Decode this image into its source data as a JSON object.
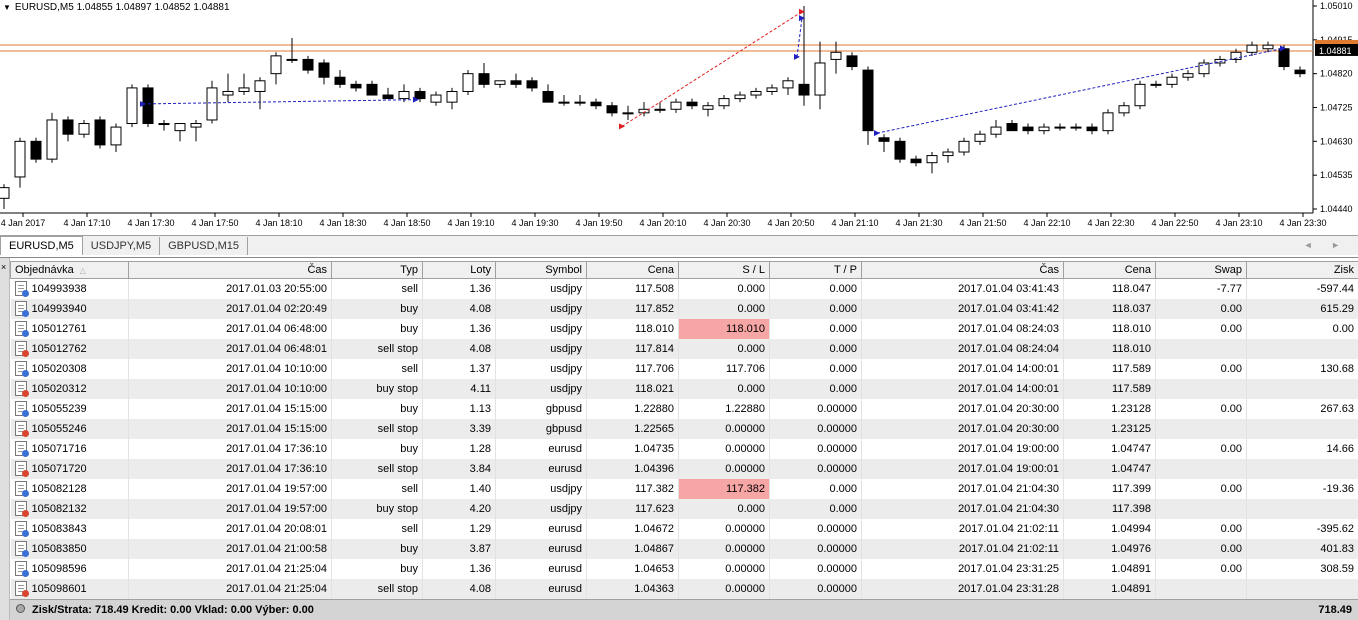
{
  "chart": {
    "symbol_info": "EURUSD,M5  1.04855 1.04897 1.04852 1.04881",
    "current_price_label": "1.04881",
    "price_levels": [
      "1.05010",
      "1.04915",
      "1.04820",
      "1.04725",
      "1.04630",
      "1.04535",
      "1.04440"
    ],
    "time_labels": [
      "4 Jan 2017",
      "4 Jan 17:10",
      "4 Jan 17:30",
      "4 Jan 17:50",
      "4 Jan 18:10",
      "4 Jan 18:30",
      "4 Jan 18:50",
      "4 Jan 19:10",
      "4 Jan 19:30",
      "4 Jan 19:50",
      "4 Jan 20:10",
      "4 Jan 20:30",
      "4 Jan 20:50",
      "4 Jan 21:10",
      "4 Jan 21:30",
      "4 Jan 21:50",
      "4 Jan 22:10",
      "4 Jan 22:30",
      "4 Jan 22:50",
      "4 Jan 23:10",
      "4 Jan 23:30"
    ],
    "colors": {
      "bull_body": "#ffffff",
      "bear_body": "#000000",
      "price_line": "#e07a2e",
      "trade_red": "#e02020",
      "trade_blue": "#2020c0"
    }
  },
  "tabs": [
    {
      "label": "EURUSD,M5",
      "active": true
    },
    {
      "label": "USDJPY,M5",
      "active": false
    },
    {
      "label": "GBPUSD,M15",
      "active": false
    }
  ],
  "tab_arrows": "◄ ►",
  "table": {
    "columns": [
      "Objednávka",
      "Čas",
      "Typ",
      "Loty",
      "Symbol",
      "Cena",
      "S / L",
      "T / P",
      "Čas",
      "Cena",
      "Swap",
      "Zisk"
    ],
    "rows": [
      {
        "ticket": "104993938",
        "open_time": "2017.01.03 20:55:00",
        "type": "sell",
        "lots": "1.36",
        "symbol": "usdjpy",
        "price": "117.508",
        "sl": "0.000",
        "tp": "0.000",
        "close_time": "2017.01.04 03:41:43",
        "close_price": "118.047",
        "swap": "-7.77",
        "profit": "-597.44",
        "icon": "blue",
        "sl_hl": false
      },
      {
        "ticket": "104993940",
        "open_time": "2017.01.04 02:20:49",
        "type": "buy",
        "lots": "4.08",
        "symbol": "usdjpy",
        "price": "117.852",
        "sl": "0.000",
        "tp": "0.000",
        "close_time": "2017.01.04 03:41:42",
        "close_price": "118.037",
        "swap": "0.00",
        "profit": "615.29",
        "icon": "blue",
        "sl_hl": false
      },
      {
        "ticket": "105012761",
        "open_time": "2017.01.04 06:48:00",
        "type": "buy",
        "lots": "1.36",
        "symbol": "usdjpy",
        "price": "118.010",
        "sl": "118.010",
        "tp": "0.000",
        "close_time": "2017.01.04 08:24:03",
        "close_price": "118.010",
        "swap": "0.00",
        "profit": "0.00",
        "icon": "blue",
        "sl_hl": true
      },
      {
        "ticket": "105012762",
        "open_time": "2017.01.04 06:48:01",
        "type": "sell stop",
        "lots": "4.08",
        "symbol": "usdjpy",
        "price": "117.814",
        "sl": "0.000",
        "tp": "0.000",
        "close_time": "2017.01.04 08:24:04",
        "close_price": "118.010",
        "swap": "",
        "profit": "",
        "icon": "red",
        "sl_hl": false
      },
      {
        "ticket": "105020308",
        "open_time": "2017.01.04 10:10:00",
        "type": "sell",
        "lots": "1.37",
        "symbol": "usdjpy",
        "price": "117.706",
        "sl": "117.706",
        "tp": "0.000",
        "close_time": "2017.01.04 14:00:01",
        "close_price": "117.589",
        "swap": "0.00",
        "profit": "130.68",
        "icon": "blue",
        "sl_hl": false
      },
      {
        "ticket": "105020312",
        "open_time": "2017.01.04 10:10:00",
        "type": "buy stop",
        "lots": "4.11",
        "symbol": "usdjpy",
        "price": "118.021",
        "sl": "0.000",
        "tp": "0.000",
        "close_time": "2017.01.04 14:00:01",
        "close_price": "117.589",
        "swap": "",
        "profit": "",
        "icon": "red",
        "sl_hl": false
      },
      {
        "ticket": "105055239",
        "open_time": "2017.01.04 15:15:00",
        "type": "buy",
        "lots": "1.13",
        "symbol": "gbpusd",
        "price": "1.22880",
        "sl": "1.22880",
        "tp": "0.00000",
        "close_time": "2017.01.04 20:30:00",
        "close_price": "1.23128",
        "swap": "0.00",
        "profit": "267.63",
        "icon": "blue",
        "sl_hl": false
      },
      {
        "ticket": "105055246",
        "open_time": "2017.01.04 15:15:00",
        "type": "sell stop",
        "lots": "3.39",
        "symbol": "gbpusd",
        "price": "1.22565",
        "sl": "0.00000",
        "tp": "0.00000",
        "close_time": "2017.01.04 20:30:00",
        "close_price": "1.23125",
        "swap": "",
        "profit": "",
        "icon": "red",
        "sl_hl": false
      },
      {
        "ticket": "105071716",
        "open_time": "2017.01.04 17:36:10",
        "type": "buy",
        "lots": "1.28",
        "symbol": "eurusd",
        "price": "1.04735",
        "sl": "0.00000",
        "tp": "0.00000",
        "close_time": "2017.01.04 19:00:00",
        "close_price": "1.04747",
        "swap": "0.00",
        "profit": "14.66",
        "icon": "blue",
        "sl_hl": false
      },
      {
        "ticket": "105071720",
        "open_time": "2017.01.04 17:36:10",
        "type": "sell stop",
        "lots": "3.84",
        "symbol": "eurusd",
        "price": "1.04396",
        "sl": "0.00000",
        "tp": "0.00000",
        "close_time": "2017.01.04 19:00:01",
        "close_price": "1.04747",
        "swap": "",
        "profit": "",
        "icon": "red",
        "sl_hl": false
      },
      {
        "ticket": "105082128",
        "open_time": "2017.01.04 19:57:00",
        "type": "sell",
        "lots": "1.40",
        "symbol": "usdjpy",
        "price": "117.382",
        "sl": "117.382",
        "tp": "0.000",
        "close_time": "2017.01.04 21:04:30",
        "close_price": "117.399",
        "swap": "0.00",
        "profit": "-19.36",
        "icon": "blue",
        "sl_hl": true
      },
      {
        "ticket": "105082132",
        "open_time": "2017.01.04 19:57:00",
        "type": "buy stop",
        "lots": "4.20",
        "symbol": "usdjpy",
        "price": "117.623",
        "sl": "0.000",
        "tp": "0.000",
        "close_time": "2017.01.04 21:04:30",
        "close_price": "117.398",
        "swap": "",
        "profit": "",
        "icon": "red",
        "sl_hl": false
      },
      {
        "ticket": "105083843",
        "open_time": "2017.01.04 20:08:01",
        "type": "sell",
        "lots": "1.29",
        "symbol": "eurusd",
        "price": "1.04672",
        "sl": "0.00000",
        "tp": "0.00000",
        "close_time": "2017.01.04 21:02:11",
        "close_price": "1.04994",
        "swap": "0.00",
        "profit": "-395.62",
        "icon": "blue",
        "sl_hl": false
      },
      {
        "ticket": "105083850",
        "open_time": "2017.01.04 21:00:58",
        "type": "buy",
        "lots": "3.87",
        "symbol": "eurusd",
        "price": "1.04867",
        "sl": "0.00000",
        "tp": "0.00000",
        "close_time": "2017.01.04 21:02:11",
        "close_price": "1.04976",
        "swap": "0.00",
        "profit": "401.83",
        "icon": "blue",
        "sl_hl": false
      },
      {
        "ticket": "105098596",
        "open_time": "2017.01.04 21:25:04",
        "type": "buy",
        "lots": "1.36",
        "symbol": "eurusd",
        "price": "1.04653",
        "sl": "0.00000",
        "tp": "0.00000",
        "close_time": "2017.01.04 23:31:25",
        "close_price": "1.04891",
        "swap": "0.00",
        "profit": "308.59",
        "icon": "blue",
        "sl_hl": false
      },
      {
        "ticket": "105098601",
        "open_time": "2017.01.04 21:25:04",
        "type": "sell stop",
        "lots": "4.08",
        "symbol": "eurusd",
        "price": "1.04363",
        "sl": "0.00000",
        "tp": "0.00000",
        "close_time": "2017.01.04 23:31:28",
        "close_price": "1.04891",
        "swap": "",
        "profit": "",
        "icon": "red",
        "sl_hl": false
      }
    ]
  },
  "status": {
    "summary": "Zisk/Strata: 718.49  Kredit: 0.00  Vklad: 0.00  Výber: 0.00",
    "total": "718.49"
  }
}
